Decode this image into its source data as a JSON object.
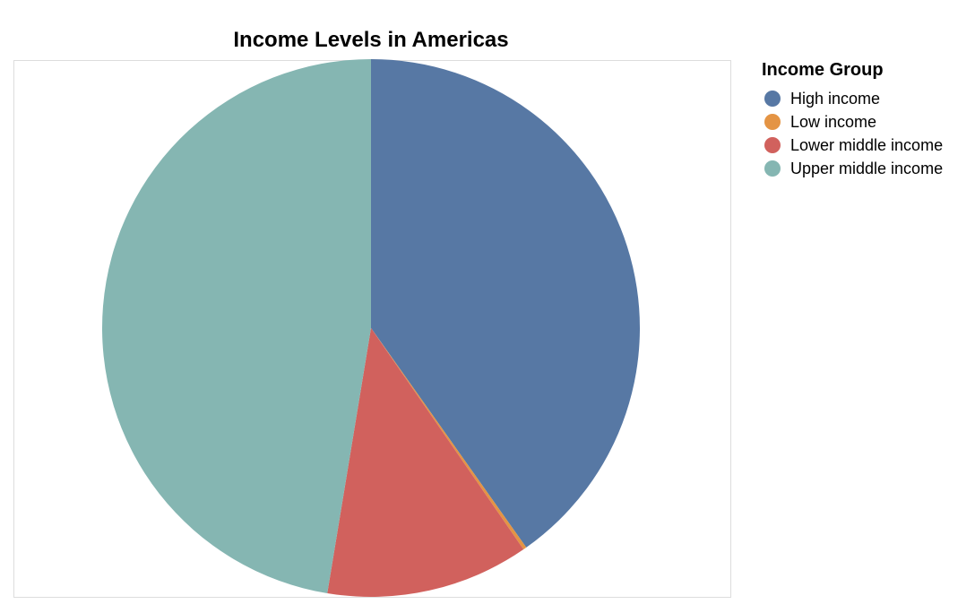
{
  "chart_data": {
    "type": "pie",
    "title": "Income Levels in Americas",
    "legend_title": "Income Group",
    "legend_position": "right",
    "categories": [
      "High income",
      "Low income",
      "Lower middle income",
      "Upper middle income"
    ],
    "values": [
      40.2,
      0.2,
      12.2,
      47.4
    ],
    "colors": [
      "#5778a4",
      "#e49444",
      "#d1615d",
      "#85b6b2"
    ]
  }
}
